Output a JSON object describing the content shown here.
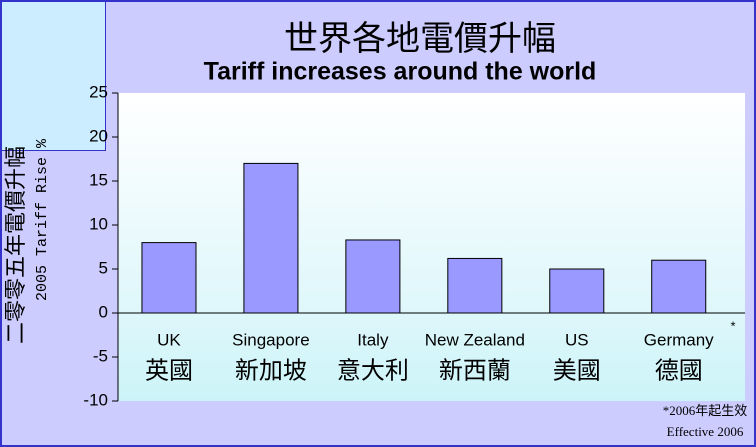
{
  "chart_data": {
    "type": "bar",
    "title": "世界各地電價升幅",
    "subtitle": "Tariff increases around the world",
    "y_label_zh": "二零零五年電價升幅",
    "y_label": "2005 Tariff Rise %",
    "categories": [
      "UK",
      "Singapore",
      "Italy",
      "New Zealand",
      "US",
      "Germany"
    ],
    "categories_zh": [
      "英國",
      "新加坡",
      "意大利",
      "新西蘭",
      "美國",
      "德國"
    ],
    "values": [
      8,
      17,
      8.3,
      6.2,
      5,
      6
    ],
    "color": "#9999ff",
    "ylim": [
      -10,
      25
    ],
    "yticks": [
      -10,
      -5,
      0,
      5,
      10,
      15,
      20,
      25
    ],
    "annotation": "*",
    "footnote_zh": "*2006年起生效",
    "footnote": "Effective 2006"
  }
}
